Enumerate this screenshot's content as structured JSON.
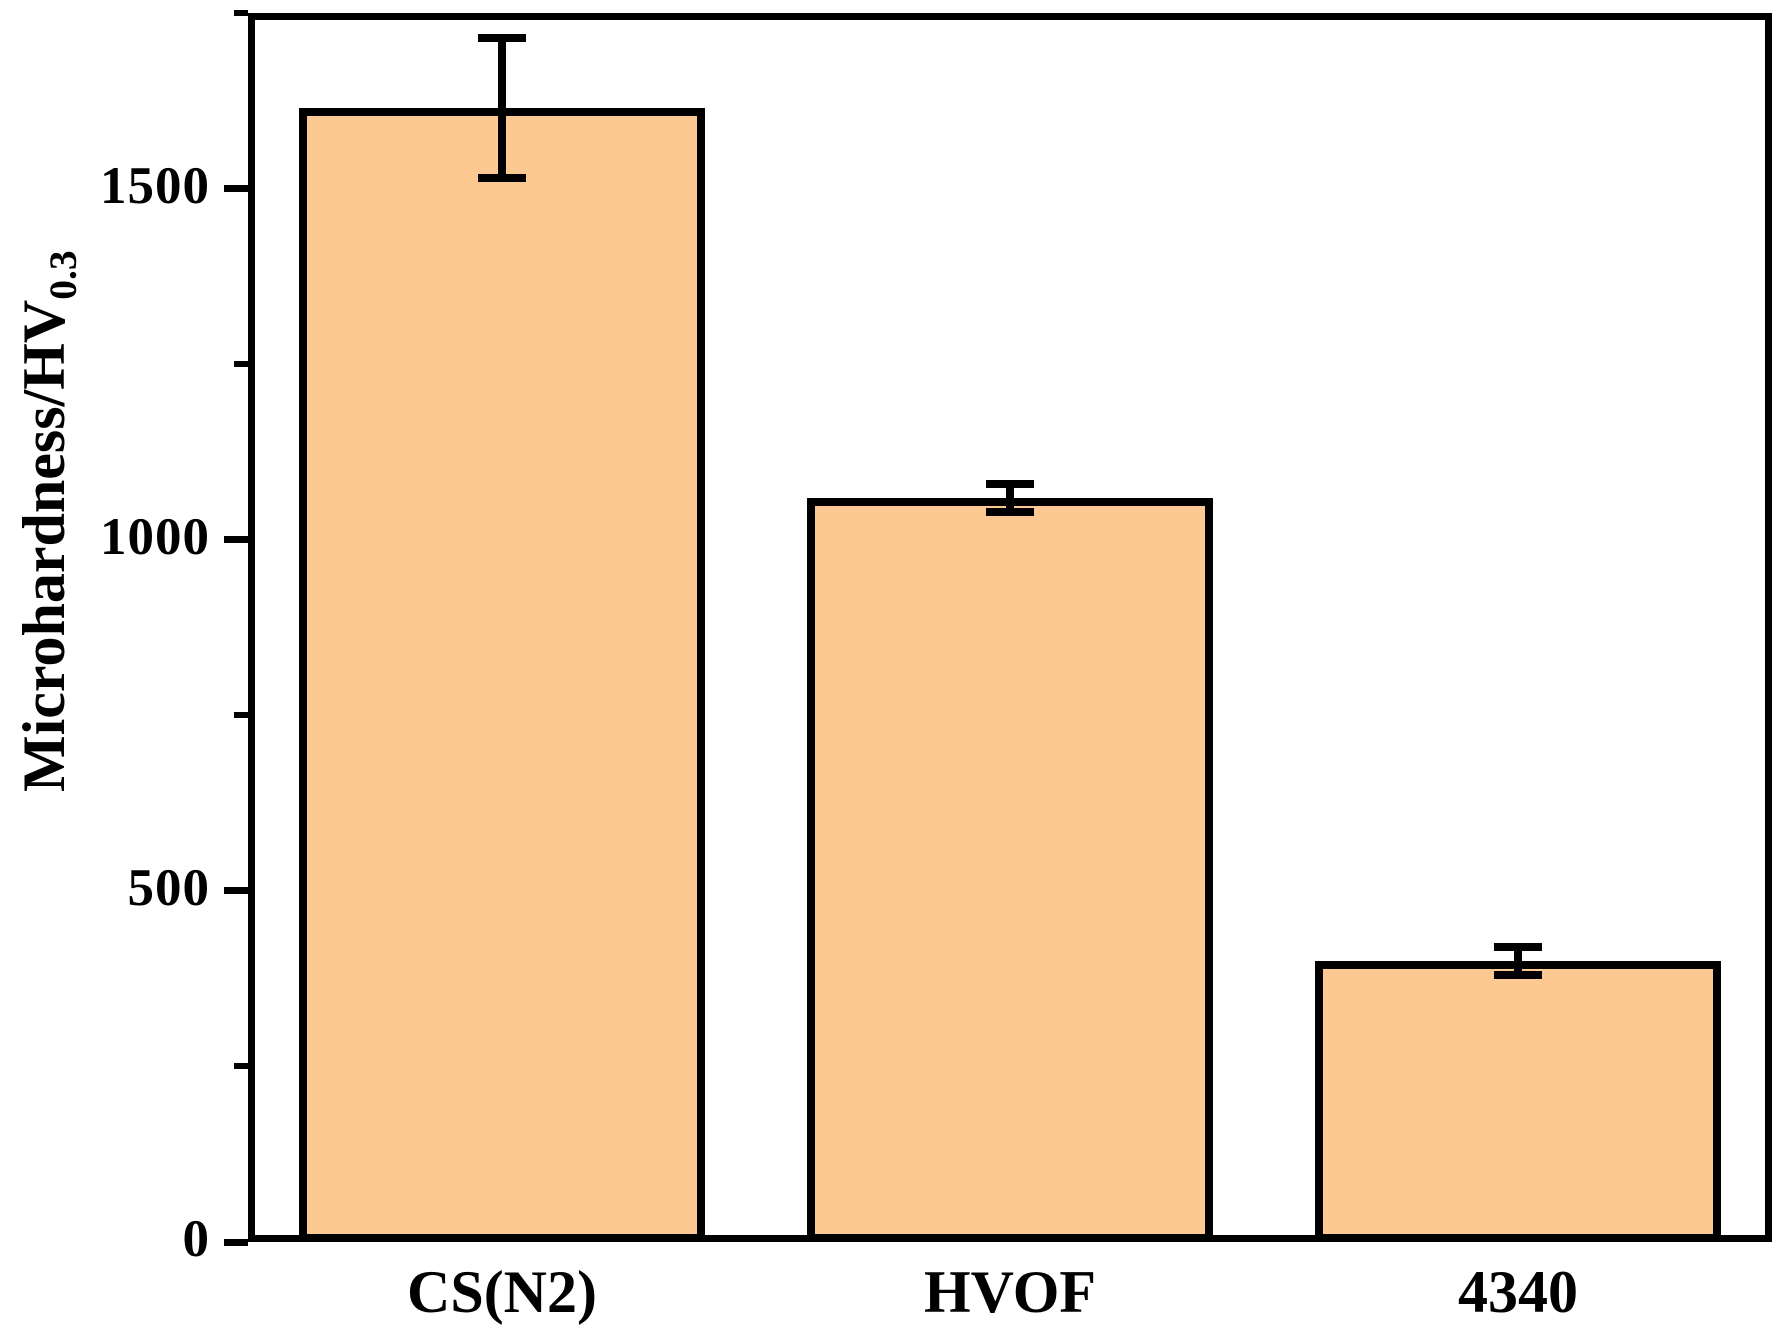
{
  "chart_data": {
    "type": "bar",
    "title": "",
    "categories": [
      "CS(N2)",
      "HVOF",
      "4340"
    ],
    "values": [
      1615,
      1060,
      400
    ],
    "errors": [
      100,
      20,
      20
    ],
    "series": [
      {
        "name": "Microhardness",
        "values": [
          1615,
          1060,
          400
        ],
        "errors": [
          100,
          20,
          20
        ]
      }
    ],
    "xlabel": "",
    "ylabel_main": "Microhardness/HV",
    "ylabel_sub": "0.3",
    "ylim": [
      0,
      1750
    ],
    "yticks_major": [
      0,
      500,
      1000,
      1500
    ],
    "ytick_labels": [
      "0",
      "500",
      "1000",
      "1500"
    ],
    "yticks_minor": [
      250,
      750,
      1250,
      1750
    ],
    "grid": false,
    "legend": "none",
    "frame": "full-box",
    "bar_fill_color": "#FDC992",
    "bar_border_color": "#000000",
    "axis_color": "#000000",
    "background_color": "#FFFFFF"
  }
}
